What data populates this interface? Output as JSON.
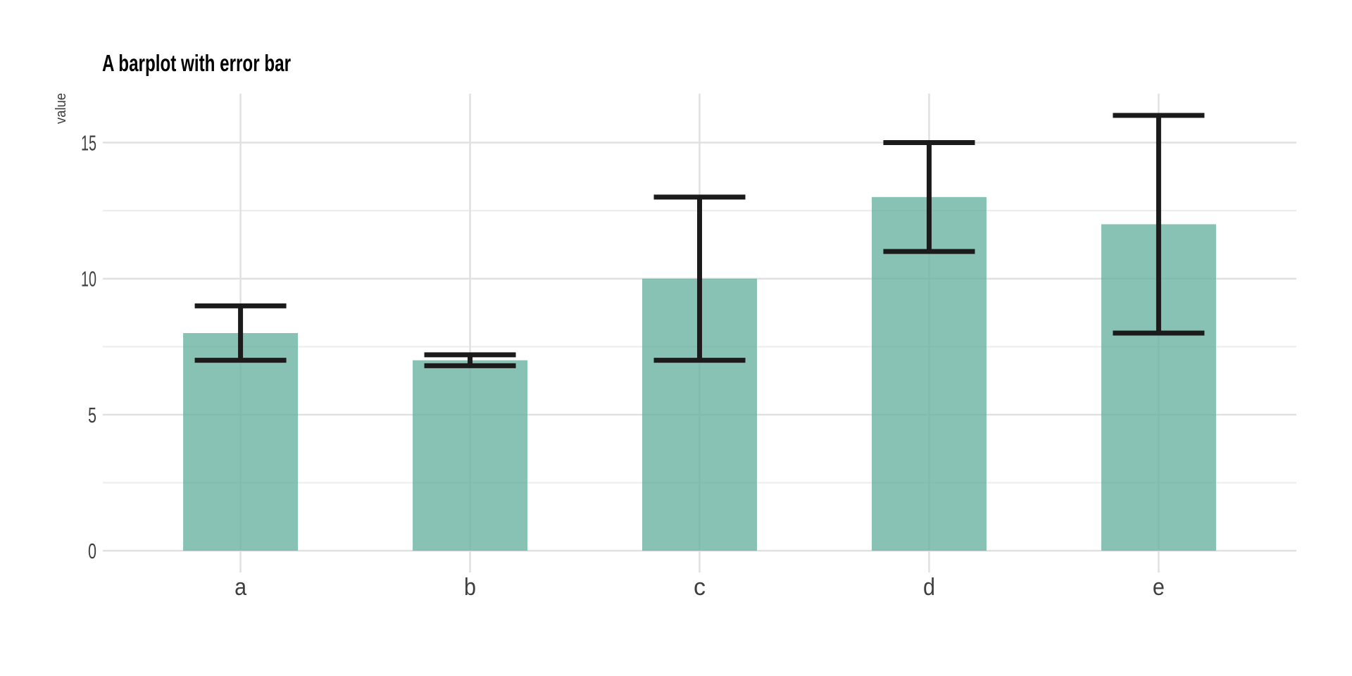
{
  "chart_data": {
    "type": "bar",
    "title": "A barplot with error bar",
    "ylabel": "value",
    "xlabel": "",
    "categories": [
      "a",
      "b",
      "c",
      "d",
      "e"
    ],
    "values": [
      8,
      7,
      10,
      13,
      12
    ],
    "error_low": [
      7,
      6.8,
      7,
      11,
      8
    ],
    "error_high": [
      9,
      7.2,
      13,
      15,
      16
    ],
    "yticks": [
      0,
      5,
      10,
      15
    ],
    "ytick_labels": [
      "0",
      "5",
      "10",
      "15"
    ],
    "minor_gridlines": [
      2.5,
      7.5,
      12.5
    ],
    "ylim": [
      -0.8,
      16.8
    ],
    "grid": "horizontal major + minor, one vertical gridline per category center",
    "legend": "none",
    "colors": {
      "bar_fill": "#69b3a2",
      "bar_opacity": 0.8,
      "error_bar": "#1b1b1b",
      "grid_major": "#e0e0e0",
      "grid_minor": "#ececec",
      "axis_text": "#3f3f3f",
      "title_text": "#000000",
      "background": "#ffffff"
    }
  }
}
